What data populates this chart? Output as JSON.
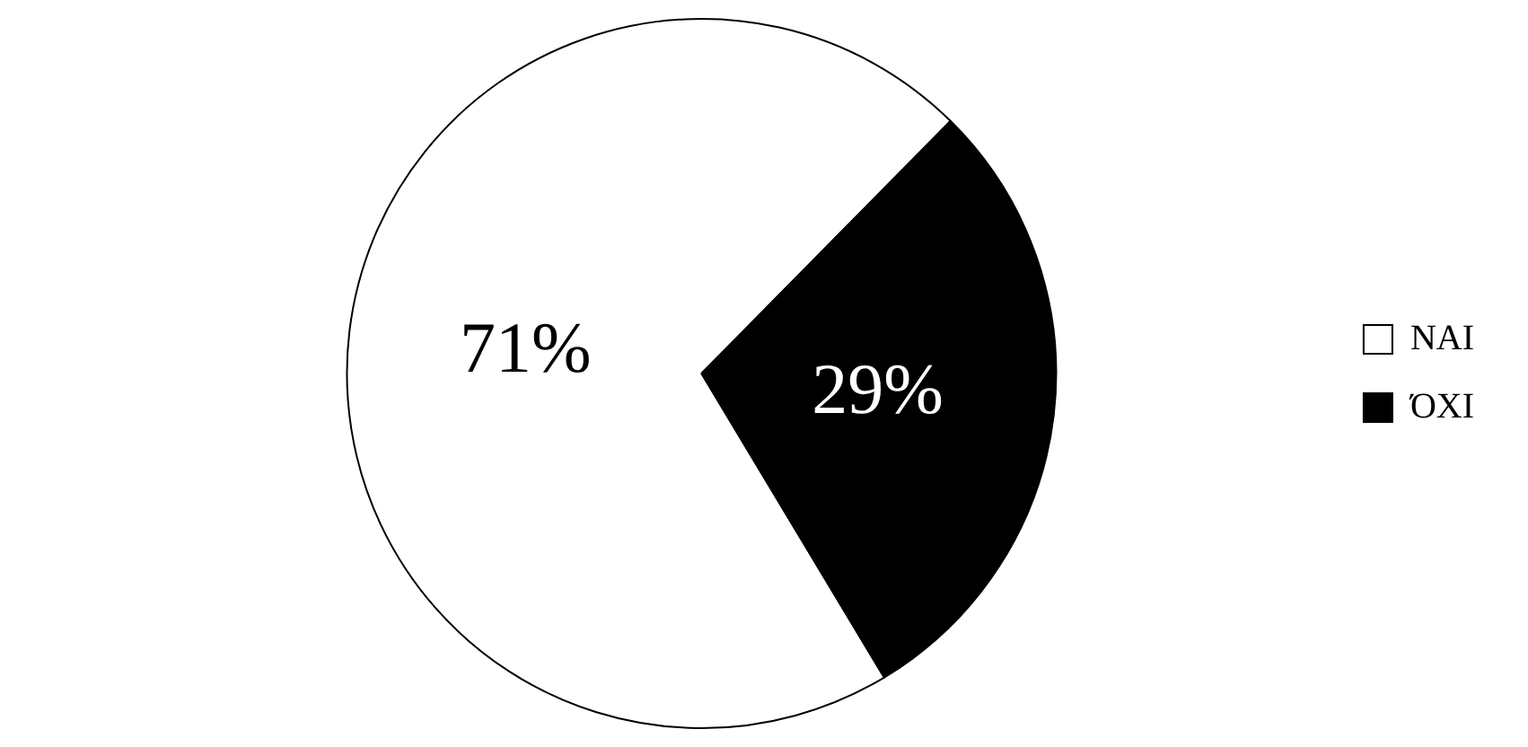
{
  "chart_data": {
    "type": "pie",
    "categories": [
      "ΝΑΙ",
      "ΌΧΙ"
    ],
    "values": [
      71,
      29
    ],
    "colors": [
      "#ffffff",
      "#000000"
    ],
    "value_labels": [
      "71%",
      "29%"
    ],
    "legend": "right"
  }
}
